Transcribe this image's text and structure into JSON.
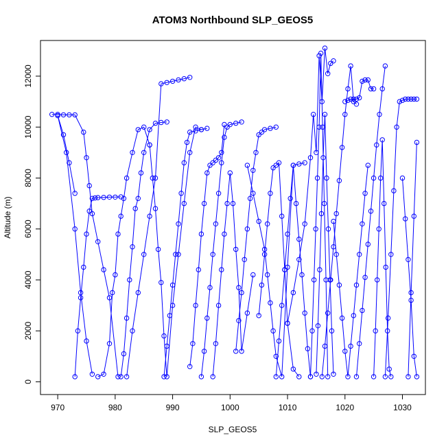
{
  "chart_data": {
    "type": "line",
    "title": "ATOM3 Northbound SLP_GEOS5",
    "xlabel": "SLP_GEOS5",
    "ylabel": "Altitude (m)",
    "xlim": [
      967,
      1034
    ],
    "ylim": [
      -500,
      13400
    ],
    "x_ticks": [
      970,
      980,
      990,
      1000,
      1010,
      1020,
      1030
    ],
    "y_ticks": [
      0,
      2000,
      4000,
      6000,
      8000,
      10000,
      12000
    ],
    "grid": false,
    "legend": "none",
    "series": [
      {
        "color": "#0000ff",
        "marker": "open-circle",
        "segments": [
          {
            "x": [
              969,
              970,
              971,
              972,
              973,
              974.5,
              975,
              975.5,
              976,
              977,
              978,
              979,
              980.5
            ],
            "y": [
              10500,
              10500,
              10480,
              10480,
              10480,
              9800,
              8800,
              7700,
              6600,
              5500,
              4400,
              3300,
              200
            ]
          },
          {
            "x": [
              973,
              973.5,
              974,
              974.5,
              975,
              975.5,
              976,
              976.5,
              977,
              978,
              979,
              980,
              981
            ],
            "y": [
              200,
              2000,
              3300,
              4500,
              5800,
              6700,
              7200,
              7220,
              7230,
              7240,
              7250,
              7250,
              7260
            ]
          },
          {
            "x": [
              973,
              972,
              971,
              970,
              971.5,
              973,
              974,
              975,
              976
            ],
            "y": [
              7400,
              8600,
              9700,
              10450,
              9000,
              6000,
              3500,
              1600,
              300
            ]
          },
          {
            "x": [
              977,
              978,
              979,
              979.5,
              980,
              980.5,
              981,
              981.5,
              982,
              983,
              984,
              985,
              986
            ],
            "y": [
              200,
              300,
              1500,
              3500,
              4200,
              5800,
              6500,
              7200,
              8000,
              9000,
              9900,
              10000,
              9300
            ]
          },
          {
            "x": [
              981,
              981.5,
              982,
              982.5,
              983,
              983.5,
              984,
              984.5,
              985,
              986,
              987,
              988,
              989
            ],
            "y": [
              200,
              1100,
              2500,
              4000,
              5300,
              6800,
              7200,
              8200,
              9000,
              9900,
              10150,
              10180,
              10200
            ]
          },
          {
            "x": [
              982,
              983,
              984,
              985,
              986,
              987,
              988,
              989,
              990,
              991,
              992,
              993
            ],
            "y": [
              200,
              2000,
              3500,
              5000,
              6500,
              8000,
              11700,
              11750,
              11800,
              11850,
              11900,
              11950
            ]
          },
          {
            "x": [
              986,
              986.5,
              987,
              987.5,
              988,
              988.5,
              989,
              990,
              991,
              992,
              993,
              994,
              995
            ],
            "y": [
              9300,
              8000,
              6800,
              5200,
              3900,
              1800,
              200,
              3000,
              5000,
              7000,
              9000,
              10000,
              9900
            ]
          },
          {
            "x": [
              988.5,
              989,
              989.5,
              990,
              990.5,
              991,
              991.5,
              992,
              992.5,
              993,
              994,
              995,
              996
            ],
            "y": [
              200,
              1400,
              2600,
              3800,
              5000,
              6200,
              7400,
              8600,
              9400,
              9800,
              9850,
              9900,
              9950
            ]
          },
          {
            "x": [
              993,
              993.5,
              994,
              994.5,
              995,
              995.5,
              996,
              996.5,
              997,
              997.5,
              998,
              998.5,
              999
            ],
            "y": [
              600,
              1500,
              3000,
              4400,
              5800,
              7000,
              8200,
              8500,
              8600,
              8700,
              8800,
              9000,
              10100
            ]
          },
          {
            "x": [
              995,
              995.5,
              996,
              996.5,
              997,
              997.5,
              998,
              998.5,
              999,
              999.5,
              1000,
              1001,
              1002
            ],
            "y": [
              200,
              1200,
              2500,
              3700,
              5000,
              6200,
              7400,
              8600,
              9600,
              10000,
              10100,
              10150,
              10200
            ]
          },
          {
            "x": [
              997,
              997.5,
              998,
              998.5,
              999,
              999.5,
              1000,
              1000.5,
              1001,
              1001.5,
              1002,
              1003,
              1004
            ],
            "y": [
              200,
              1500,
              3000,
              4400,
              5800,
              7000,
              8200,
              7000,
              5200,
              3700,
              1200,
              2700,
              4200
            ]
          },
          {
            "x": [
              1001,
              1001.5,
              1002,
              1002.5,
              1003,
              1003.5,
              1004,
              1004.5,
              1005,
              1005.5,
              1006,
              1007,
              1008
            ],
            "y": [
              1200,
              2400,
              3500,
              4800,
              6000,
              7200,
              8300,
              9000,
              9700,
              9800,
              9900,
              9950,
              10000
            ]
          },
          {
            "x": [
              1003,
              1004,
              1005,
              1006,
              1006.5,
              1007,
              1007.5,
              1008,
              1009,
              1010,
              1011,
              1012,
              1013
            ],
            "y": [
              8500,
              7400,
              6300,
              5200,
              4200,
              3100,
              2000,
              1000,
              200,
              4500,
              8500,
              8550,
              8600
            ]
          },
          {
            "x": [
              1005,
              1005.5,
              1006,
              1006.5,
              1007,
              1007.5,
              1008,
              1008.5,
              1009,
              1009.5,
              1010,
              1011,
              1012
            ],
            "y": [
              2600,
              3800,
              5000,
              6200,
              7400,
              8400,
              8500,
              8600,
              6500,
              4400,
              2300,
              500,
              200
            ]
          },
          {
            "x": [
              1008,
              1008.5,
              1009,
              1009.5,
              1010,
              1010.5,
              1011,
              1011.5,
              1012,
              1012.5,
              1013,
              1013.5,
              1014
            ],
            "y": [
              200,
              1600,
              3000,
              4400,
              5800,
              7200,
              8500,
              7000,
              5600,
              4200,
              2700,
              1300,
              200
            ]
          },
          {
            "x": [
              1010,
              1011,
              1012,
              1013,
              1014,
              1014.5,
              1015,
              1015.5,
              1016,
              1016.5,
              1017,
              1017.5,
              1018
            ],
            "y": [
              2300,
              3500,
              4800,
              6200,
              8800,
              10500,
              9000,
              12800,
              11000,
              13100,
              12100,
              12500,
              12600
            ]
          },
          {
            "x": [
              1014,
              1014.3,
              1014.6,
              1014.9,
              1015.2,
              1015.5,
              1015.8,
              1016.1,
              1016.4,
              1016.7,
              1017
            ],
            "y": [
              200,
              2000,
              4000,
              6000,
              8000,
              10000,
              12900,
              10000,
              7000,
              4000,
              200
            ]
          },
          {
            "x": [
              1015,
              1015.3,
              1015.6,
              1015.9,
              1016.2,
              1016.5,
              1016.8,
              1017.1,
              1017.4,
              1017.7,
              1018
            ],
            "y": [
              300,
              2200,
              4400,
              6600,
              8800,
              10500,
              8000,
              6000,
              4000,
              2000,
              300
            ]
          },
          {
            "x": [
              1016,
              1016.5,
              1017,
              1017.5,
              1018,
              1018.5,
              1019,
              1019.5,
              1020,
              1020.5,
              1021,
              1021.5,
              1022
            ],
            "y": [
              200,
              1400,
              2700,
              4000,
              5300,
              6600,
              7900,
              9200,
              10500,
              11500,
              12400,
              11000,
              10900
            ]
          },
          {
            "x": [
              1018,
              1018.5,
              1019,
              1019.5,
              1020,
              1020.5,
              1021,
              1021.5,
              1022,
              1022.5,
              1023,
              1023.5,
              1024
            ],
            "y": [
              6300,
              5000,
              3800,
              2500,
              1200,
              200,
              1400,
              2600,
              3800,
              5000,
              6200,
              7400,
              8500
            ]
          },
          {
            "x": [
              1020,
              1020.5,
              1021,
              1021.5,
              1022,
              1022.5,
              1023,
              1023.5,
              1024,
              1024.5,
              1025
            ],
            "y": [
              11000,
              11050,
              11100,
              11100,
              11100,
              11150,
              11800,
              11850,
              11850,
              11500,
              11500
            ]
          },
          {
            "x": [
              1022,
              1022.5,
              1023,
              1023.5,
              1024,
              1024.5,
              1025,
              1025.5,
              1026,
              1026.5,
              1027
            ],
            "y": [
              200,
              1500,
              2800,
              4100,
              5400,
              6700,
              8000,
              9300,
              10500,
              11500,
              12400
            ]
          },
          {
            "x": [
              1025,
              1025.3,
              1025.6,
              1025.9,
              1026.2,
              1026.5,
              1026.8,
              1027.1,
              1027.4,
              1027.7,
              1028
            ],
            "y": [
              200,
              2000,
              4000,
              6000,
              8000,
              9500,
              7000,
              4500,
              2000,
              500,
              200
            ]
          },
          {
            "x": [
              1027,
              1027.5,
              1028,
              1028.5,
              1029,
              1029.5,
              1030,
              1030.5,
              1031,
              1031.5,
              1032,
              1032.5
            ],
            "y": [
              200,
              2500,
              5000,
              7500,
              10000,
              11000,
              11050,
              11100,
              11100,
              11100,
              11100,
              11100
            ]
          },
          {
            "x": [
              1030,
              1030.5,
              1031,
              1031.5,
              1032,
              1032.5
            ],
            "y": [
              8000,
              6400,
              4800,
              3200,
              1000,
              200
            ]
          },
          {
            "x": [
              1031,
              1031.5,
              1032,
              1032.5
            ],
            "y": [
              200,
              3500,
              6500,
              9400
            ]
          }
        ]
      }
    ]
  }
}
